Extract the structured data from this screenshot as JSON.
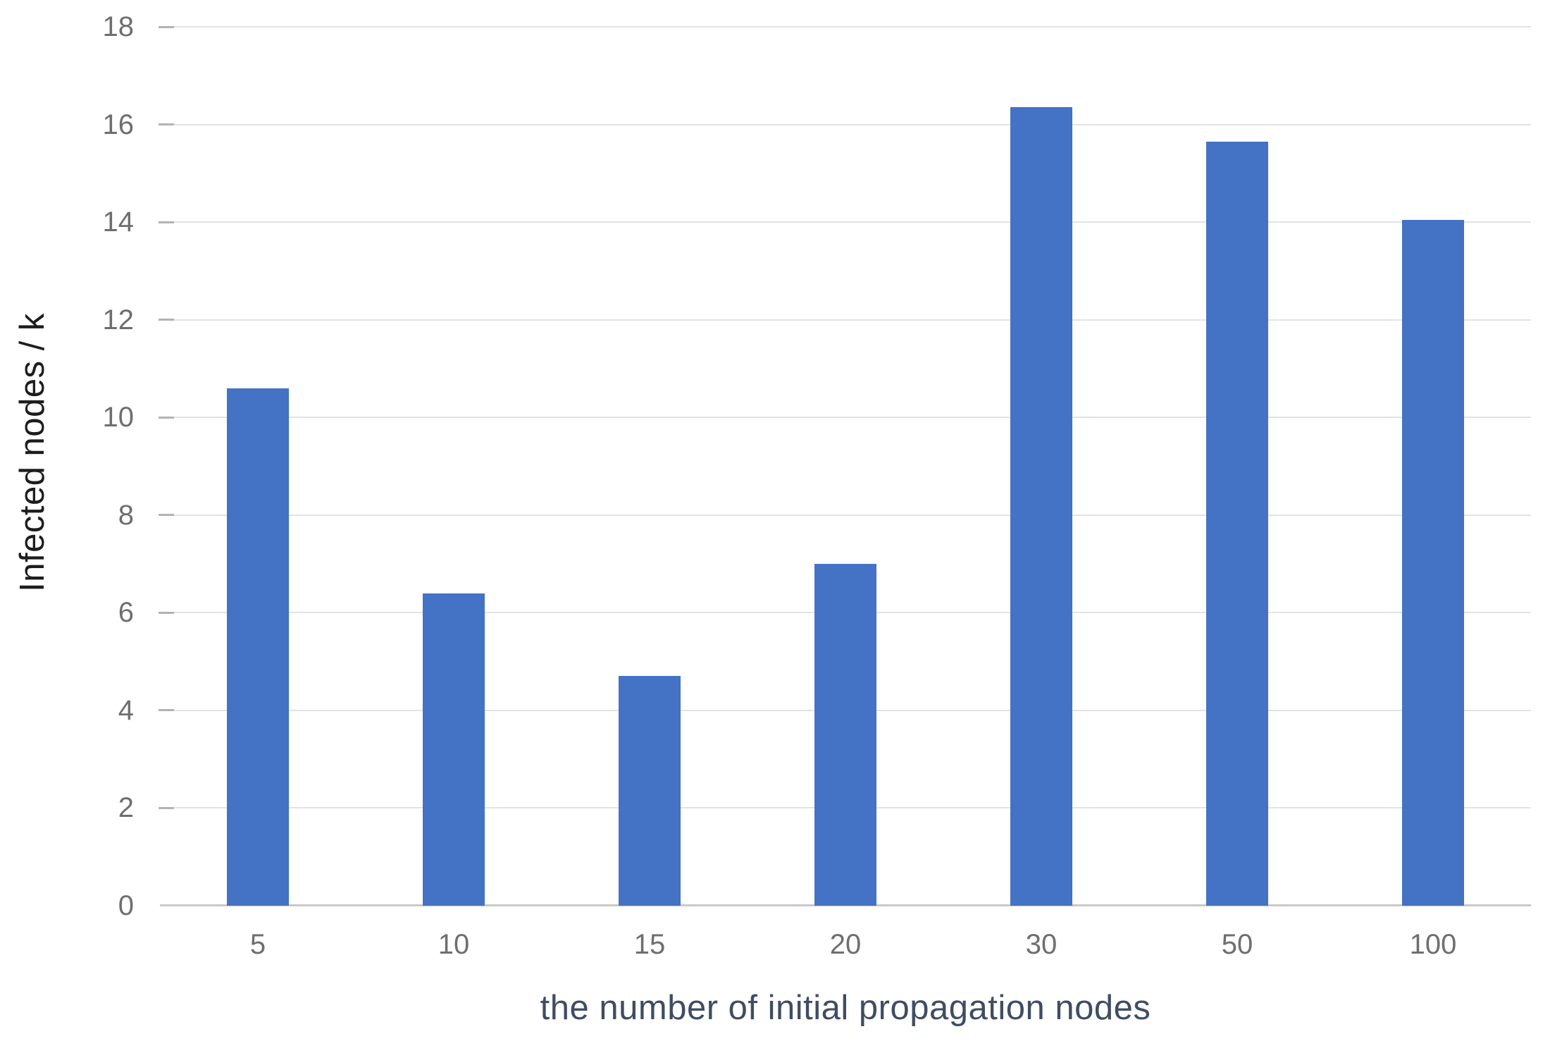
{
  "chart_data": {
    "type": "bar",
    "title": "",
    "xlabel": "the number of initial propagation nodes",
    "ylabel": "Infected nodes / k",
    "categories": [
      "5",
      "10",
      "15",
      "20",
      "30",
      "50",
      "100"
    ],
    "values": [
      10.6,
      6.4,
      4.7,
      7.0,
      16.35,
      15.65,
      14.05
    ],
    "ylim": [
      0,
      18
    ],
    "yticks": [
      0,
      2,
      4,
      6,
      8,
      10,
      12,
      14,
      16,
      18
    ],
    "grid": "horizontal-only",
    "legend": "none",
    "colors": {
      "bar": "#4472C4",
      "gridline": "#e3e3e3",
      "baseline": "#c9c9c9",
      "tick_stub": "#b3b3b3",
      "tick_label": "#6e6e6e",
      "x_title": "#3f4d63",
      "y_title": "#1d1d1d",
      "background": "#ffffff"
    }
  }
}
